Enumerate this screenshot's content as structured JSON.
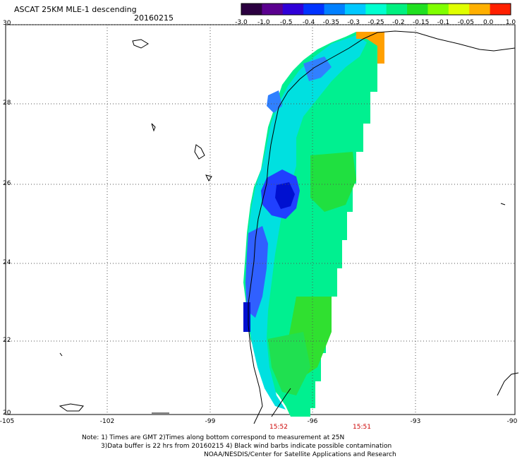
{
  "header": {
    "title": "ASCAT 25KM MLE-1 descending",
    "date": "20160215"
  },
  "colorbar": {
    "labels": [
      "-3.0",
      "-1.0",
      "-0.5",
      "-0.4",
      "-0.35",
      "-0.3",
      "-0.25",
      "-0.2",
      "-0.15",
      "-0.1",
      "-0.05",
      "0.0",
      "1.0"
    ],
    "colors": [
      "#2b0040",
      "#5a008f",
      "#2f00d8",
      "#0033ff",
      "#0080ff",
      "#00c8ff",
      "#00ffd0",
      "#00f080",
      "#20e020",
      "#80ff00",
      "#e0ff00",
      "#ffb000",
      "#ff2000"
    ]
  },
  "axes": {
    "lat_labels": [
      "30",
      "28",
      "26",
      "24",
      "22",
      "20"
    ],
    "lon_labels": [
      "-105",
      "-102",
      "-99",
      "-96",
      "-93",
      "-90"
    ]
  },
  "times": [
    "15:52",
    "15:51"
  ],
  "notes": {
    "line1": "Note: 1) Times are GMT 2)Times along bottom correspond to measurement at 25N",
    "line2": "3)Data buffer is 22 hrs from 20160215 4) Black wind barbs indicate possible contamination",
    "line3": "NOAA/NESDIS/Center for Satellite Applications and Research"
  }
}
